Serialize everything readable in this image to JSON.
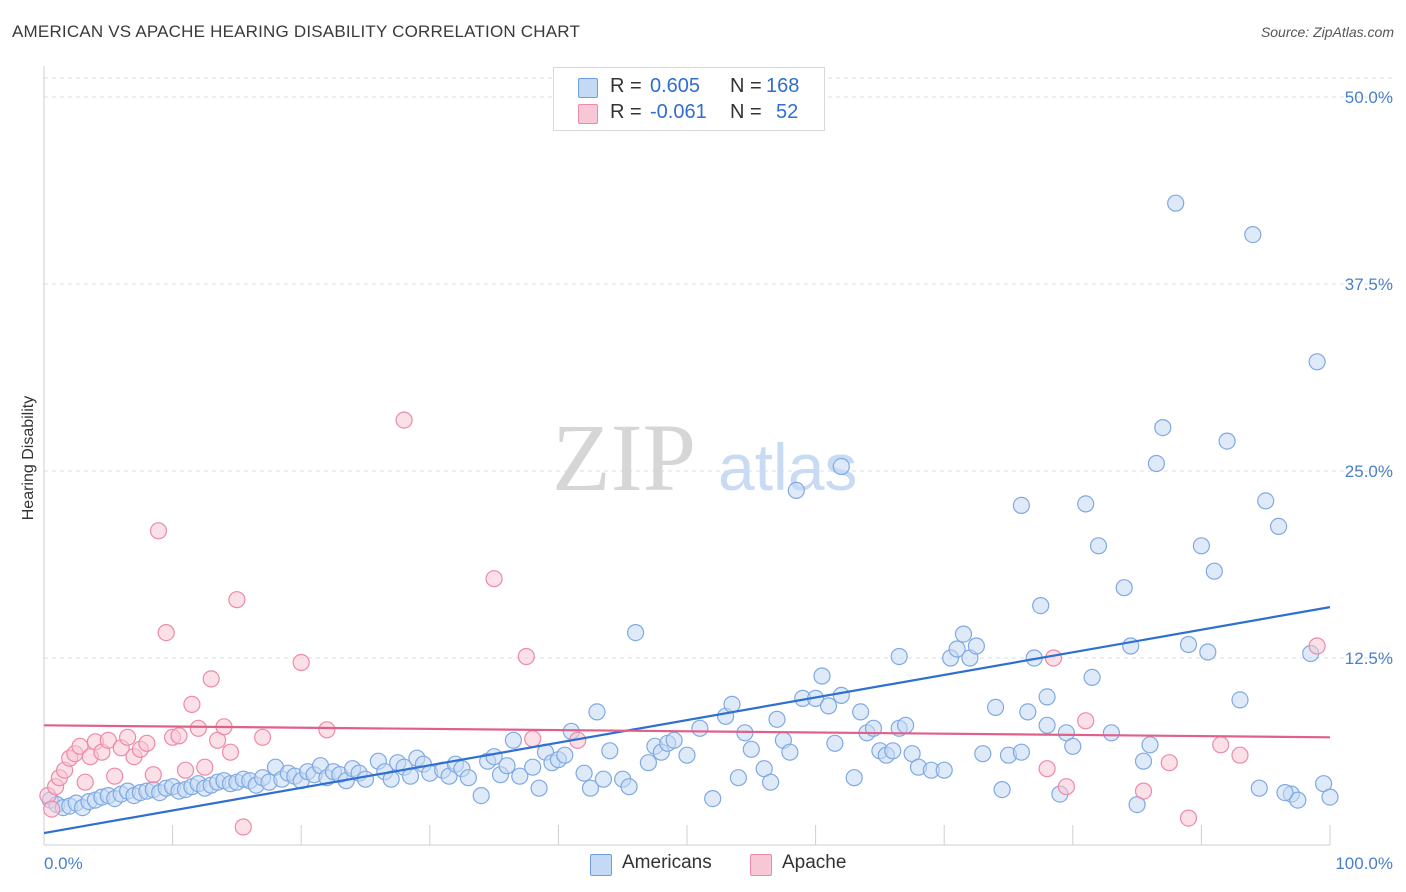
{
  "title": "AMERICAN VS APACHE HEARING DISABILITY CORRELATION CHART",
  "source": "Source: ZipAtlas.com",
  "watermark": {
    "zip": "ZIP",
    "atlas": "atlas"
  },
  "legend": {
    "rows": [
      {
        "r_label": "R =",
        "r_value": "0.605",
        "n_label": "N =",
        "n_value": "168",
        "color": "#a9c8f0",
        "border": "#6f9fe0"
      },
      {
        "r_label": "R =",
        "r_value": "-0.061",
        "n_label": "N =",
        "n_value": "52",
        "color": "#f7b9cb",
        "border": "#ec8aa8"
      }
    ],
    "bottom": [
      {
        "label": "Americans",
        "color": "#a9c8f0",
        "border": "#6f9fe0"
      },
      {
        "label": "Apache",
        "color": "#f7b9cb",
        "border": "#ec8aa8"
      }
    ]
  },
  "chart_data": {
    "type": "scatter",
    "title": "AMERICAN VS APACHE HEARING DISABILITY CORRELATION CHART",
    "ylabel": "Hearing Disability",
    "xlabel": "",
    "xlim": [
      0,
      100
    ],
    "ylim": [
      0,
      50
    ],
    "x_tick_labels": [
      "0.0%",
      "100.0%"
    ],
    "y_ticks": [
      12.5,
      25.0,
      37.5,
      50.0
    ],
    "y_tick_labels": [
      "12.5%",
      "25.0%",
      "37.5%",
      "50.0%"
    ],
    "grid": "horizontal dashed",
    "legend_position": "top-center",
    "series": [
      {
        "name": "Americans",
        "color": "#7fa9e3",
        "fill": "#c4d9f4",
        "trend": {
          "x": [
            0,
            100
          ],
          "y": [
            0.8,
            15.9
          ]
        },
        "points": [
          [
            0.5,
            3.0
          ],
          [
            1.0,
            2.7
          ],
          [
            1.5,
            2.5
          ],
          [
            2.0,
            2.6
          ],
          [
            2.5,
            2.8
          ],
          [
            3.0,
            2.5
          ],
          [
            3.5,
            2.9
          ],
          [
            4.0,
            3.0
          ],
          [
            4.5,
            3.2
          ],
          [
            5.0,
            3.3
          ],
          [
            5.5,
            3.1
          ],
          [
            6.0,
            3.4
          ],
          [
            6.5,
            3.6
          ],
          [
            7.0,
            3.3
          ],
          [
            7.5,
            3.5
          ],
          [
            8.0,
            3.6
          ],
          [
            8.5,
            3.7
          ],
          [
            9.0,
            3.5
          ],
          [
            9.5,
            3.8
          ],
          [
            10.0,
            3.9
          ],
          [
            10.5,
            3.6
          ],
          [
            11.0,
            3.7
          ],
          [
            11.5,
            3.9
          ],
          [
            12.0,
            4.1
          ],
          [
            12.5,
            3.8
          ],
          [
            13.0,
            4.0
          ],
          [
            13.5,
            4.2
          ],
          [
            14.0,
            4.3
          ],
          [
            14.5,
            4.1
          ],
          [
            15.0,
            4.2
          ],
          [
            15.5,
            4.4
          ],
          [
            16.0,
            4.3
          ],
          [
            16.5,
            4.0
          ],
          [
            17.0,
            4.5
          ],
          [
            17.5,
            4.2
          ],
          [
            18.0,
            5.2
          ],
          [
            18.5,
            4.4
          ],
          [
            19.0,
            4.8
          ],
          [
            19.5,
            4.6
          ],
          [
            20.0,
            4.3
          ],
          [
            20.5,
            4.9
          ],
          [
            21.0,
            4.7
          ],
          [
            21.5,
            5.3
          ],
          [
            22.0,
            4.5
          ],
          [
            22.5,
            4.9
          ],
          [
            23.0,
            4.7
          ],
          [
            23.5,
            4.3
          ],
          [
            24.0,
            5.1
          ],
          [
            24.5,
            4.8
          ],
          [
            25.0,
            4.4
          ],
          [
            26.0,
            5.6
          ],
          [
            26.5,
            4.9
          ],
          [
            27.0,
            4.4
          ],
          [
            27.5,
            5.5
          ],
          [
            28.0,
            5.2
          ],
          [
            28.5,
            4.6
          ],
          [
            29.0,
            5.8
          ],
          [
            29.5,
            5.4
          ],
          [
            30.0,
            4.8
          ],
          [
            31.0,
            5.0
          ],
          [
            31.5,
            4.6
          ],
          [
            32.0,
            5.4
          ],
          [
            32.5,
            5.1
          ],
          [
            33.0,
            4.5
          ],
          [
            34.0,
            3.3
          ],
          [
            34.5,
            5.6
          ],
          [
            35.0,
            5.9
          ],
          [
            35.5,
            4.7
          ],
          [
            36.0,
            5.3
          ],
          [
            36.5,
            7.0
          ],
          [
            37.0,
            4.6
          ],
          [
            38.0,
            5.2
          ],
          [
            38.5,
            3.8
          ],
          [
            39.0,
            6.2
          ],
          [
            39.5,
            5.5
          ],
          [
            40.0,
            5.7
          ],
          [
            40.5,
            6.0
          ],
          [
            41.0,
            7.6
          ],
          [
            42.0,
            4.8
          ],
          [
            42.5,
            3.8
          ],
          [
            43.0,
            8.9
          ],
          [
            43.5,
            4.4
          ],
          [
            44.0,
            6.3
          ],
          [
            45.0,
            4.4
          ],
          [
            45.5,
            3.9
          ],
          [
            46.0,
            14.2
          ],
          [
            47.0,
            5.5
          ],
          [
            47.5,
            6.6
          ],
          [
            48.0,
            6.2
          ],
          [
            48.5,
            6.8
          ],
          [
            49.0,
            7.0
          ],
          [
            50.0,
            6.0
          ],
          [
            51.0,
            7.8
          ],
          [
            52.0,
            3.1
          ],
          [
            53.0,
            8.6
          ],
          [
            53.5,
            9.4
          ],
          [
            54.0,
            4.5
          ],
          [
            54.5,
            7.5
          ],
          [
            55.0,
            6.4
          ],
          [
            56.0,
            5.1
          ],
          [
            56.5,
            4.2
          ],
          [
            57.0,
            8.4
          ],
          [
            57.5,
            7.0
          ],
          [
            58.0,
            6.2
          ],
          [
            59.0,
            9.8
          ],
          [
            60.0,
            9.8
          ],
          [
            60.5,
            11.3
          ],
          [
            61.0,
            9.3
          ],
          [
            61.5,
            6.8
          ],
          [
            62.0,
            10.0
          ],
          [
            63.0,
            4.5
          ],
          [
            63.5,
            8.9
          ],
          [
            64.0,
            7.5
          ],
          [
            64.5,
            7.8
          ],
          [
            65.0,
            6.3
          ],
          [
            65.5,
            6.0
          ],
          [
            66.0,
            6.3
          ],
          [
            66.5,
            7.8
          ],
          [
            67.0,
            8.0
          ],
          [
            67.5,
            6.1
          ],
          [
            68.0,
            5.2
          ],
          [
            69.0,
            5.0
          ],
          [
            70.0,
            5.0
          ],
          [
            70.5,
            12.5
          ],
          [
            71.0,
            13.1
          ],
          [
            71.5,
            14.1
          ],
          [
            72.0,
            12.5
          ],
          [
            72.5,
            13.3
          ],
          [
            73.0,
            6.1
          ],
          [
            74.0,
            9.2
          ],
          [
            74.5,
            3.7
          ],
          [
            75.0,
            6.0
          ],
          [
            76.0,
            6.2
          ],
          [
            76.5,
            8.9
          ],
          [
            77.0,
            12.5
          ],
          [
            77.5,
            16.0
          ],
          [
            78.0,
            8.0
          ],
          [
            79.0,
            3.4
          ],
          [
            79.5,
            7.5
          ],
          [
            80.0,
            6.6
          ],
          [
            81.0,
            22.8
          ],
          [
            81.5,
            11.2
          ],
          [
            82.0,
            20.0
          ],
          [
            83.0,
            7.5
          ],
          [
            84.0,
            17.2
          ],
          [
            85.0,
            2.7
          ],
          [
            85.5,
            5.6
          ],
          [
            86.0,
            6.7
          ],
          [
            86.5,
            25.5
          ],
          [
            87.0,
            27.9
          ],
          [
            88.0,
            42.9
          ],
          [
            89.0,
            13.4
          ],
          [
            90.0,
            20.0
          ],
          [
            91.0,
            18.3
          ],
          [
            92.0,
            27.0
          ],
          [
            93.0,
            9.7
          ],
          [
            94.0,
            40.8
          ],
          [
            94.5,
            3.8
          ],
          [
            95.0,
            23.0
          ],
          [
            96.0,
            21.3
          ],
          [
            97.0,
            3.4
          ],
          [
            97.5,
            3.0
          ],
          [
            98.5,
            12.8
          ],
          [
            99.0,
            32.3
          ],
          [
            99.5,
            4.1
          ],
          [
            100.0,
            3.2
          ],
          [
            66.5,
            12.6
          ],
          [
            58.5,
            23.7
          ],
          [
            62.0,
            25.3
          ],
          [
            76.0,
            22.7
          ],
          [
            78.0,
            9.9
          ],
          [
            84.5,
            13.3
          ],
          [
            90.5,
            12.9
          ],
          [
            96.5,
            3.5
          ]
        ]
      },
      {
        "name": "Apache",
        "color": "#ec8aa8",
        "fill": "#f7c7d5",
        "trend": {
          "x": [
            0,
            100
          ],
          "y": [
            8.0,
            7.2
          ]
        },
        "points": [
          [
            0.3,
            3.3
          ],
          [
            0.6,
            2.4
          ],
          [
            0.9,
            3.9
          ],
          [
            1.2,
            4.5
          ],
          [
            1.6,
            5.0
          ],
          [
            2.0,
            5.8
          ],
          [
            2.4,
            6.1
          ],
          [
            2.8,
            6.6
          ],
          [
            3.2,
            4.2
          ],
          [
            3.6,
            5.9
          ],
          [
            4.0,
            6.9
          ],
          [
            4.5,
            6.2
          ],
          [
            5.0,
            7.0
          ],
          [
            5.5,
            4.6
          ],
          [
            6.0,
            6.5
          ],
          [
            6.5,
            7.2
          ],
          [
            7.0,
            5.9
          ],
          [
            7.5,
            6.4
          ],
          [
            8.0,
            6.8
          ],
          [
            8.5,
            4.7
          ],
          [
            8.9,
            21.0
          ],
          [
            9.5,
            14.2
          ],
          [
            10.0,
            7.2
          ],
          [
            10.5,
            7.3
          ],
          [
            11.0,
            5.0
          ],
          [
            11.5,
            9.4
          ],
          [
            12.0,
            7.8
          ],
          [
            12.5,
            5.2
          ],
          [
            13.0,
            11.1
          ],
          [
            13.5,
            7.0
          ],
          [
            14.0,
            7.9
          ],
          [
            14.5,
            6.2
          ],
          [
            15.0,
            16.4
          ],
          [
            15.5,
            1.2
          ],
          [
            17.0,
            7.2
          ],
          [
            20.0,
            12.2
          ],
          [
            22.0,
            7.7
          ],
          [
            28.0,
            28.4
          ],
          [
            35.0,
            17.8
          ],
          [
            37.5,
            12.6
          ],
          [
            38.0,
            7.1
          ],
          [
            41.5,
            7.0
          ],
          [
            78.0,
            5.1
          ],
          [
            78.5,
            12.5
          ],
          [
            79.5,
            3.9
          ],
          [
            81.0,
            8.3
          ],
          [
            85.5,
            3.6
          ],
          [
            87.5,
            5.5
          ],
          [
            89.0,
            1.8
          ],
          [
            91.5,
            6.7
          ],
          [
            93.0,
            6.0
          ],
          [
            99.0,
            13.3
          ]
        ]
      }
    ]
  }
}
